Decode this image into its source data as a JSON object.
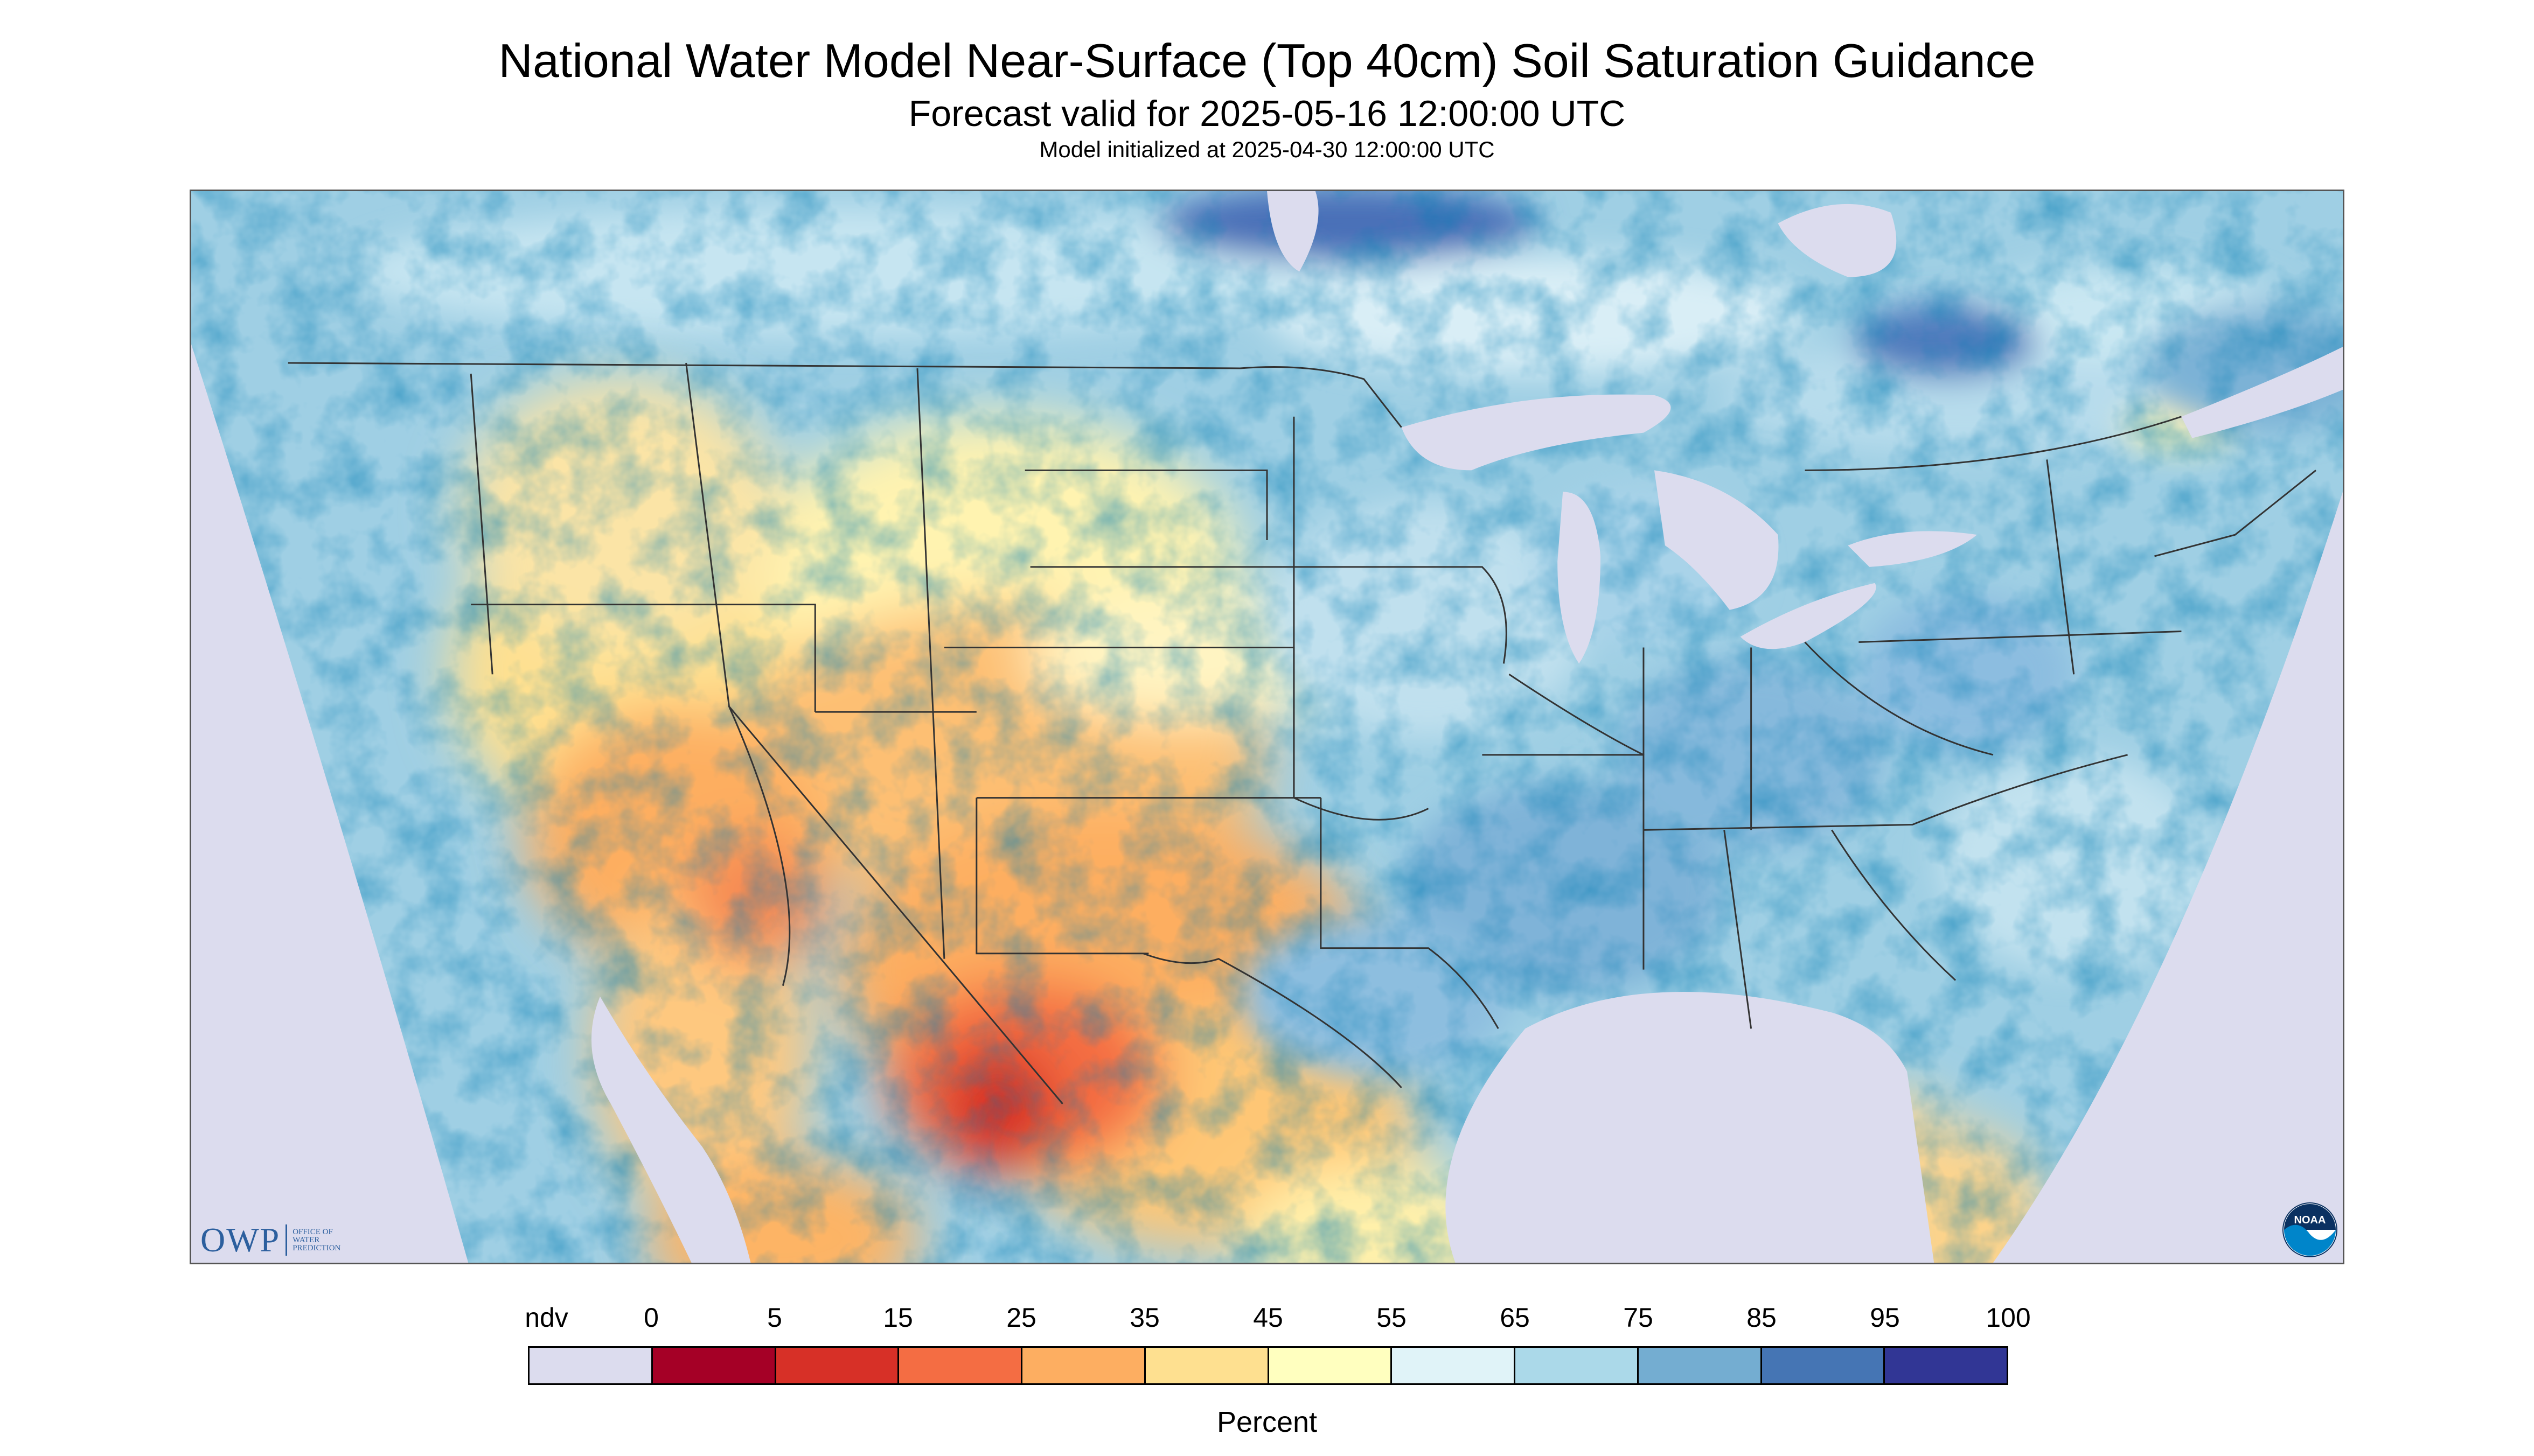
{
  "header": {
    "title": "National Water Model Near-Surface (Top 40cm) Soil Saturation Guidance",
    "valid": "Forecast valid for 2025-05-16 12:00:00 UTC",
    "initialized": "Model initialized at 2025-04-30 12:00:00 UTC"
  },
  "map": {
    "region": "Contiguous United States",
    "no_data_color": "#dcdcee",
    "water_color": "#dcdcee",
    "state_border_color": "#333333"
  },
  "logos": {
    "owp_big": "OWP",
    "owp_line1": "Office of",
    "owp_line2": "Water",
    "owp_line3": "Prediction",
    "noaa_text": "NOAA"
  },
  "legend": {
    "unit": "Percent",
    "tick_labels": [
      "ndv",
      "0",
      "5",
      "15",
      "25",
      "35",
      "45",
      "55",
      "65",
      "75",
      "85",
      "95",
      "100"
    ],
    "colors": [
      "#dcdcee",
      "#a50026",
      "#d73027",
      "#f46d43",
      "#fdae61",
      "#fee090",
      "#ffffbf",
      "#e0f3f8",
      "#abd9e9",
      "#74add1",
      "#4575b4",
      "#313695"
    ]
  }
}
